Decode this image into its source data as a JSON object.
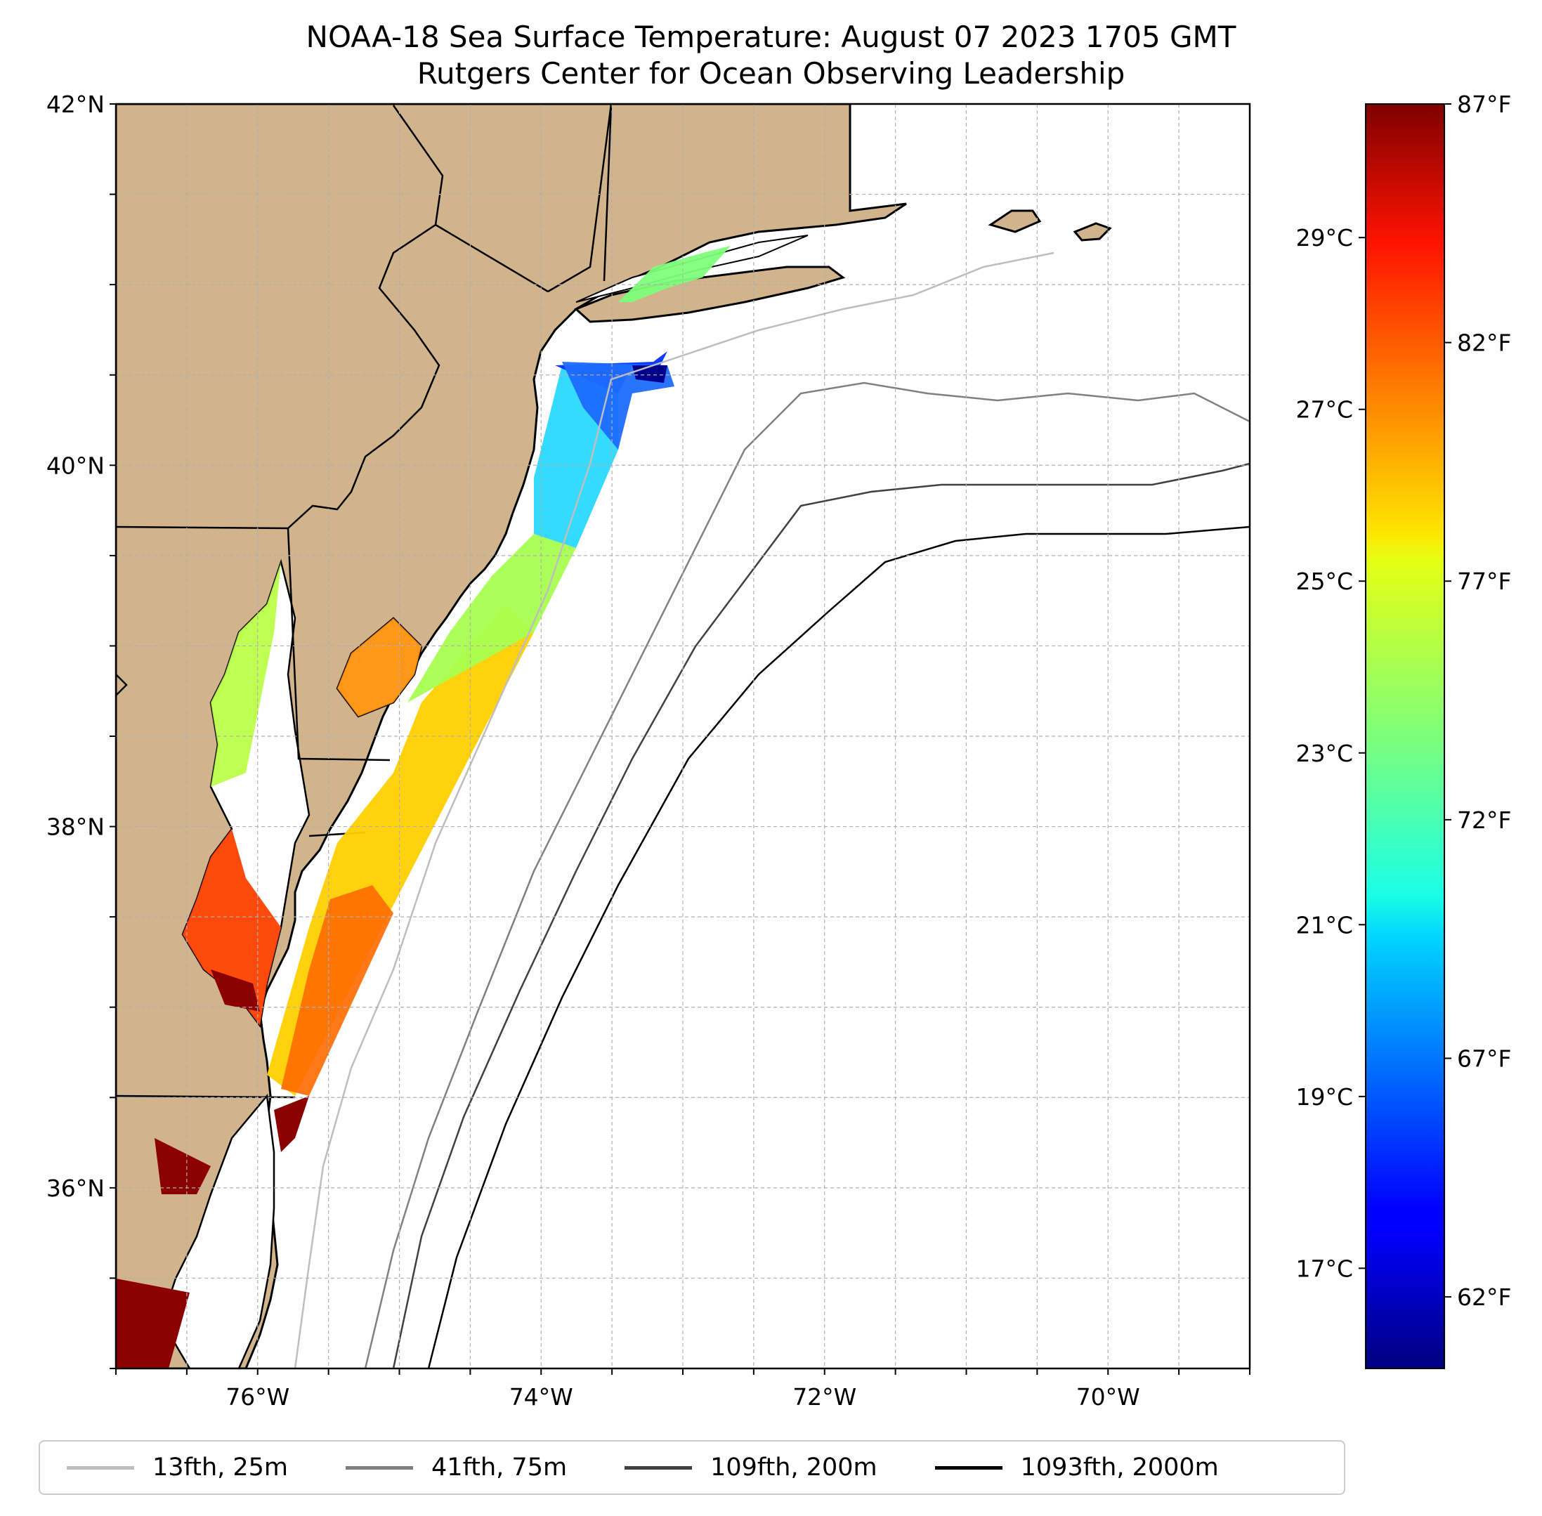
{
  "title": {
    "line1": "NOAA-18 Sea Surface Temperature: August 07 2023 1705 GMT",
    "line2": "Rutgers Center for Ocean Observing Leadership"
  },
  "colors": {
    "land": "#d2b48c",
    "coast": "#000000",
    "grid": "#b0b0b0",
    "iso_25m": "#bebebe",
    "iso_75m": "#808080",
    "iso_200m": "#404040",
    "iso_2000m": "#000000"
  },
  "map": {
    "lon_range": [
      -77.0,
      -69.0
    ],
    "lat_range": [
      35.0,
      42.0
    ],
    "lon_ticks": [
      {
        "value": -76,
        "label": "76°W"
      },
      {
        "value": -74,
        "label": "74°W"
      },
      {
        "value": -72,
        "label": "72°W"
      },
      {
        "value": -70,
        "label": "70°W"
      }
    ],
    "lat_ticks": [
      {
        "value": 42,
        "label": "42°N"
      },
      {
        "value": 40,
        "label": "40°N"
      },
      {
        "value": 38,
        "label": "38°N"
      },
      {
        "value": 36,
        "label": "36°N"
      }
    ]
  },
  "colorbar": {
    "colormap": "jet",
    "range_f": [
      60.5,
      87.0
    ],
    "fahrenheit_ticks": [
      {
        "value": 87,
        "label": "87°F"
      },
      {
        "value": 82,
        "label": "82°F"
      },
      {
        "value": 77,
        "label": "77°F"
      },
      {
        "value": 72,
        "label": "72°F"
      },
      {
        "value": 67,
        "label": "67°F"
      },
      {
        "value": 62,
        "label": "62°F"
      }
    ],
    "celsius_ticks": [
      {
        "value": 29,
        "label": "29°C"
      },
      {
        "value": 27,
        "label": "27°C"
      },
      {
        "value": 25,
        "label": "25°C"
      },
      {
        "value": 23,
        "label": "23°C"
      },
      {
        "value": 21,
        "label": "21°C"
      },
      {
        "value": 19,
        "label": "19°C"
      },
      {
        "value": 17,
        "label": "17°C"
      }
    ]
  },
  "legend": [
    {
      "label": "13fth, 25m",
      "color": "#bebebe"
    },
    {
      "label": "41fth, 75m",
      "color": "#808080"
    },
    {
      "label": "109fth, 200m",
      "color": "#404040"
    },
    {
      "label": "1093fth, 2000m",
      "color": "#000000"
    }
  ]
}
